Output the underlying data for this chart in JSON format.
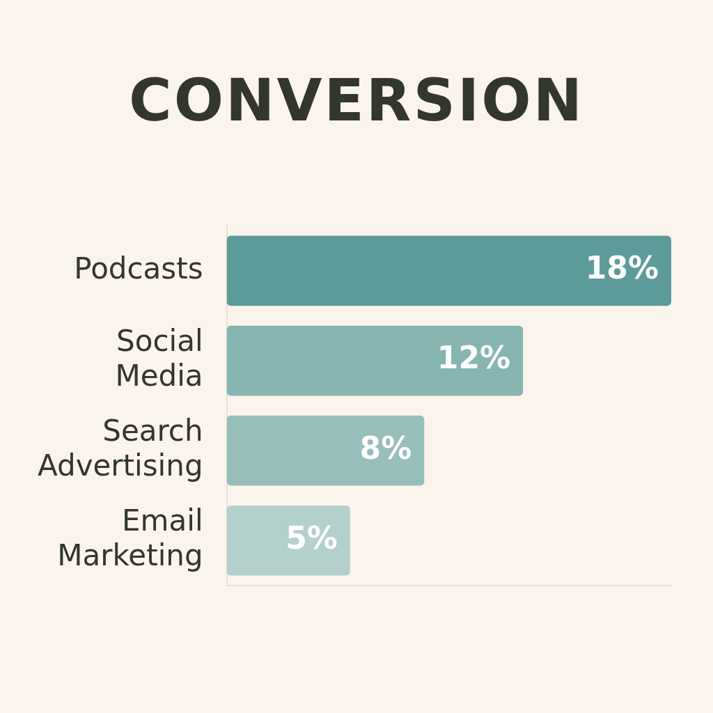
{
  "chart_data": {
    "type": "bar",
    "orientation": "horizontal",
    "title": "CONVERSION",
    "categories": [
      "Podcasts",
      "Social Media",
      "Search Advertising",
      "Email Marketing"
    ],
    "values": [
      18,
      12,
      8,
      5
    ],
    "colors": [
      "#5d9b9a",
      "#86b4b1",
      "#97beba",
      "#b4d0cd"
    ],
    "value_labels": [
      "18%",
      "12%",
      "8%",
      "5%"
    ],
    "tick_labels": "y",
    "grid": false,
    "legend": false
  }
}
